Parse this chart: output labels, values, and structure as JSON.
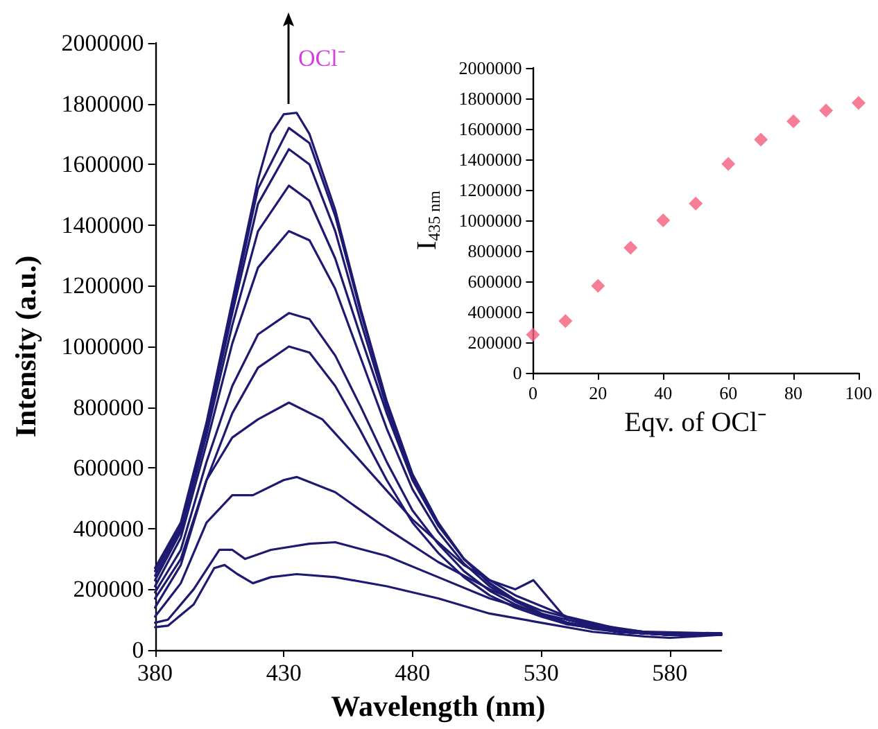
{
  "chart_data": [
    {
      "type": "line",
      "xlabel": "Wavelength (nm)",
      "ylabel": "Intensity (a.u.)",
      "xlim": [
        380,
        600
      ],
      "xticks": [
        380,
        430,
        480,
        530,
        580
      ],
      "ylim": [
        0,
        2000000
      ],
      "yticks": [
        0,
        200000,
        400000,
        600000,
        800000,
        1000000,
        1200000,
        1400000,
        1600000,
        1800000,
        2000000
      ],
      "grid": false,
      "marker": "none",
      "line_style": "solid",
      "annotations": [
        "OCl⁻"
      ],
      "series": [
        {
          "color": "#1e1a72",
          "x": [
            380,
            390,
            400,
            410,
            420,
            425,
            430,
            435,
            440,
            450,
            460,
            470,
            480,
            490,
            500,
            510,
            520,
            530,
            540,
            550,
            560,
            580,
            600
          ],
          "values": [
            270000,
            420000,
            750000,
            1150000,
            1550000,
            1700000,
            1765000,
            1770000,
            1700000,
            1450000,
            1120000,
            820000,
            580000,
            420000,
            300000,
            220000,
            160000,
            120000,
            90000,
            70000,
            60000,
            50000,
            50000
          ]
        },
        {
          "color": "#1e1a72",
          "x": [
            380,
            390,
            400,
            410,
            420,
            432,
            440,
            450,
            460,
            470,
            480,
            490,
            500,
            510,
            520,
            530,
            540,
            560,
            580,
            600
          ],
          "values": [
            260000,
            410000,
            740000,
            1130000,
            1520000,
            1720000,
            1670000,
            1430000,
            1110000,
            815000,
            575000,
            415000,
            300000,
            220000,
            165000,
            120000,
            90000,
            60000,
            50000,
            50000
          ]
        },
        {
          "color": "#1e1a72",
          "x": [
            380,
            390,
            400,
            410,
            420,
            432,
            440,
            450,
            460,
            470,
            480,
            490,
            500,
            510,
            520,
            530,
            540,
            560,
            580,
            600
          ],
          "values": [
            245000,
            400000,
            730000,
            1110000,
            1470000,
            1650000,
            1600000,
            1380000,
            1080000,
            800000,
            570000,
            415000,
            300000,
            220000,
            165000,
            120000,
            90000,
            60000,
            50000,
            50000
          ]
        },
        {
          "color": "#1e1a72",
          "x": [
            380,
            390,
            400,
            410,
            420,
            432,
            440,
            450,
            460,
            470,
            480,
            490,
            500,
            510,
            520,
            527,
            535,
            540,
            560,
            580,
            600
          ],
          "values": [
            230000,
            390000,
            710000,
            1070000,
            1380000,
            1530000,
            1480000,
            1290000,
            1030000,
            780000,
            560000,
            410000,
            300000,
            230000,
            200000,
            230000,
            150000,
            100000,
            60000,
            50000,
            50000
          ]
        },
        {
          "color": "#1e1a72",
          "x": [
            380,
            390,
            400,
            410,
            420,
            432,
            440,
            450,
            460,
            470,
            480,
            490,
            500,
            510,
            520,
            530,
            540,
            560,
            580,
            600
          ],
          "values": [
            210000,
            370000,
            680000,
            1010000,
            1260000,
            1380000,
            1350000,
            1190000,
            960000,
            730000,
            530000,
            390000,
            285000,
            210000,
            160000,
            120000,
            90000,
            60000,
            50000,
            50000
          ]
        },
        {
          "color": "#1e1a72",
          "x": [
            380,
            390,
            400,
            410,
            420,
            432,
            440,
            450,
            460,
            470,
            480,
            490,
            500,
            510,
            520,
            530,
            540,
            560,
            580,
            600
          ],
          "values": [
            190000,
            330000,
            620000,
            870000,
            1040000,
            1110000,
            1090000,
            970000,
            800000,
            620000,
            460000,
            350000,
            260000,
            195000,
            150000,
            115000,
            85000,
            60000,
            50000,
            50000
          ]
        },
        {
          "color": "#1e1a72",
          "x": [
            380,
            390,
            400,
            410,
            420,
            432,
            440,
            450,
            460,
            470,
            480,
            490,
            500,
            510,
            520,
            530,
            540,
            560,
            580,
            600
          ],
          "values": [
            170000,
            300000,
            560000,
            780000,
            930000,
            1000000,
            980000,
            870000,
            720000,
            560000,
            420000,
            320000,
            240000,
            180000,
            140000,
            110000,
            85000,
            60000,
            50000,
            50000
          ]
        },
        {
          "color": "#1e1a72",
          "x": [
            380,
            390,
            400,
            410,
            420,
            432,
            445,
            460,
            480,
            500,
            520,
            540,
            560,
            580,
            600
          ],
          "values": [
            140000,
            280000,
            560000,
            700000,
            760000,
            815000,
            760000,
            620000,
            430000,
            280000,
            180000,
            110000,
            70000,
            50000,
            55000
          ]
        },
        {
          "color": "#1e1a72",
          "x": [
            380,
            390,
            400,
            410,
            418,
            430,
            435,
            450,
            470,
            490,
            510,
            530,
            550,
            570,
            600
          ],
          "values": [
            110000,
            220000,
            420000,
            510000,
            510000,
            560000,
            570000,
            520000,
            400000,
            290000,
            200000,
            130000,
            85000,
            60000,
            55000
          ]
        },
        {
          "color": "#1e1a72",
          "x": [
            380,
            385,
            395,
            405,
            410,
            415,
            425,
            440,
            450,
            470,
            490,
            510,
            530,
            550,
            570,
            600
          ],
          "values": [
            90000,
            100000,
            200000,
            330000,
            330000,
            300000,
            330000,
            350000,
            355000,
            310000,
            240000,
            170000,
            120000,
            80000,
            55000,
            55000
          ]
        },
        {
          "color": "#1e1a72",
          "x": [
            380,
            385,
            395,
            403,
            407,
            412,
            418,
            425,
            435,
            450,
            470,
            490,
            510,
            530,
            550,
            570,
            580,
            600
          ],
          "values": [
            75000,
            80000,
            150000,
            270000,
            280000,
            250000,
            220000,
            240000,
            250000,
            240000,
            210000,
            170000,
            120000,
            90000,
            60000,
            45000,
            40000,
            50000
          ]
        }
      ]
    },
    {
      "type": "scatter",
      "xlabel": "Eqv. of OCl⁻",
      "ylabel": "I$_{435 nm}$",
      "xlim": [
        0,
        100
      ],
      "xticks": [
        0,
        20,
        40,
        60,
        80,
        100
      ],
      "ylim": [
        0,
        2000000
      ],
      "yticks": [
        0,
        200000,
        400000,
        600000,
        800000,
        1000000,
        1200000,
        1400000,
        1600000,
        1800000,
        2000000
      ],
      "grid": false,
      "marker": "diamond",
      "x": [
        0,
        10,
        20,
        30,
        40,
        50,
        60,
        70,
        80,
        90,
        100
      ],
      "series": [
        {
          "color": "#f25c7c",
          "values": [
            250000,
            340000,
            570000,
            820000,
            1000000,
            1110000,
            1370000,
            1530000,
            1650000,
            1720000,
            1770000
          ]
        }
      ]
    }
  ]
}
